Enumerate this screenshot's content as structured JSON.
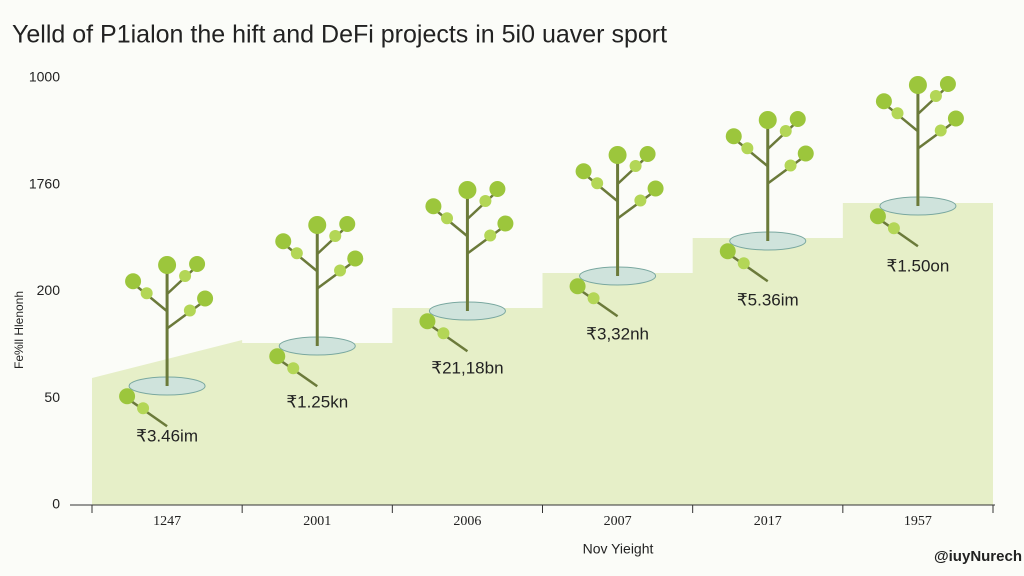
{
  "title": "Yelld of P1ialon the hift and DeFi projects in 5i0 uaver sport",
  "y_axis_title": "Fe%ll Hlenonh",
  "x_axis_title": "Nov Yieight",
  "y_axis_labels": [
    "1000",
    "1760",
    "200",
    "50",
    "0"
  ],
  "categories": [
    "1247",
    "2001",
    "2006",
    "2007",
    "2017",
    "1957"
  ],
  "labels": [
    "₹3.46im",
    "₹1.25kn",
    "₹21,18bn",
    "₹3,32nh",
    "₹5.36im",
    "₹1.50on"
  ],
  "watermark": "@iuyNurech"
}
